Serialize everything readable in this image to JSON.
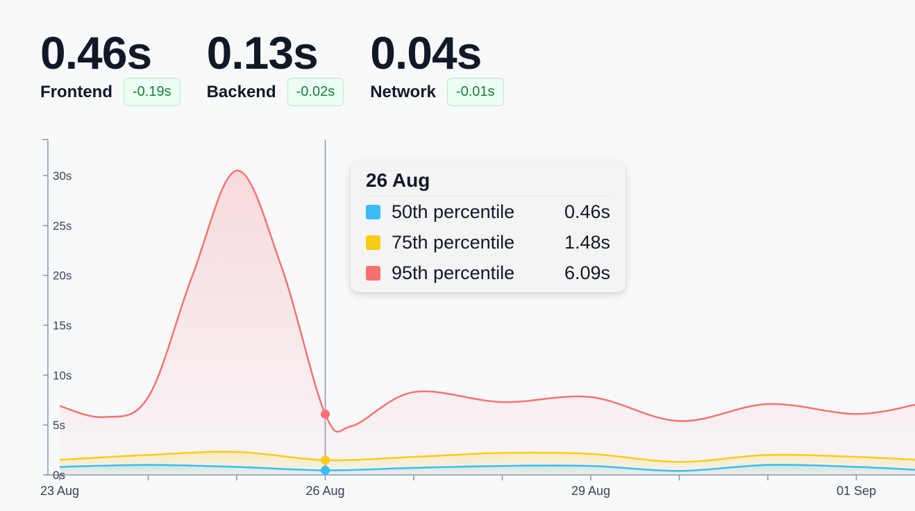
{
  "metrics": [
    {
      "value": "0.46s",
      "label": "Frontend",
      "delta": "-0.19s"
    },
    {
      "value": "0.13s",
      "label": "Backend",
      "delta": "-0.02s"
    },
    {
      "value": "0.04s",
      "label": "Network",
      "delta": "-0.01s"
    }
  ],
  "tooltip": {
    "date": "26 Aug",
    "rows": [
      {
        "label": "50th percentile",
        "value": "0.46s",
        "color": "#38bdf8"
      },
      {
        "label": "75th percentile",
        "value": "1.48s",
        "color": "#facc15"
      },
      {
        "label": "95th percentile",
        "value": "6.09s",
        "color": "#f87171"
      }
    ]
  },
  "chart_data": {
    "type": "area",
    "x_tick_labels": [
      "23 Aug",
      "26 Aug",
      "29 Aug",
      "01 Sep"
    ],
    "y_tick_labels": [
      "0s",
      "5s",
      "10s",
      "15s",
      "20s",
      "25s",
      "30s"
    ],
    "ylim": [
      0,
      33.5
    ],
    "xlim_days": [
      0,
      9.7
    ],
    "grid": false,
    "highlight_day": 3,
    "series": [
      {
        "name": "95th percentile",
        "color": "#f87171",
        "x": [
          0,
          0.5,
          1,
          1.5,
          2,
          2.5,
          3,
          3.3,
          4,
          5,
          6,
          7,
          8,
          9,
          9.7
        ],
        "values": [
          6.9,
          5.8,
          7.8,
          20,
          30.5,
          21,
          6.09,
          4.9,
          8.3,
          7.3,
          7.8,
          5.4,
          7.1,
          6.1,
          7.1
        ]
      },
      {
        "name": "75th percentile",
        "color": "#facc15",
        "x": [
          0,
          1,
          2,
          3,
          4,
          5,
          6,
          7,
          8,
          9,
          9.7
        ],
        "values": [
          1.5,
          2.0,
          2.3,
          1.48,
          1.8,
          2.2,
          2.1,
          1.3,
          2.0,
          1.8,
          1.5
        ]
      },
      {
        "name": "50th percentile",
        "color": "#38bdf8",
        "x": [
          0,
          1,
          2,
          3,
          4,
          5,
          6,
          7,
          8,
          9,
          9.7
        ],
        "values": [
          0.8,
          1.0,
          0.8,
          0.46,
          0.7,
          0.9,
          0.9,
          0.4,
          1.0,
          0.8,
          0.5
        ]
      }
    ]
  }
}
